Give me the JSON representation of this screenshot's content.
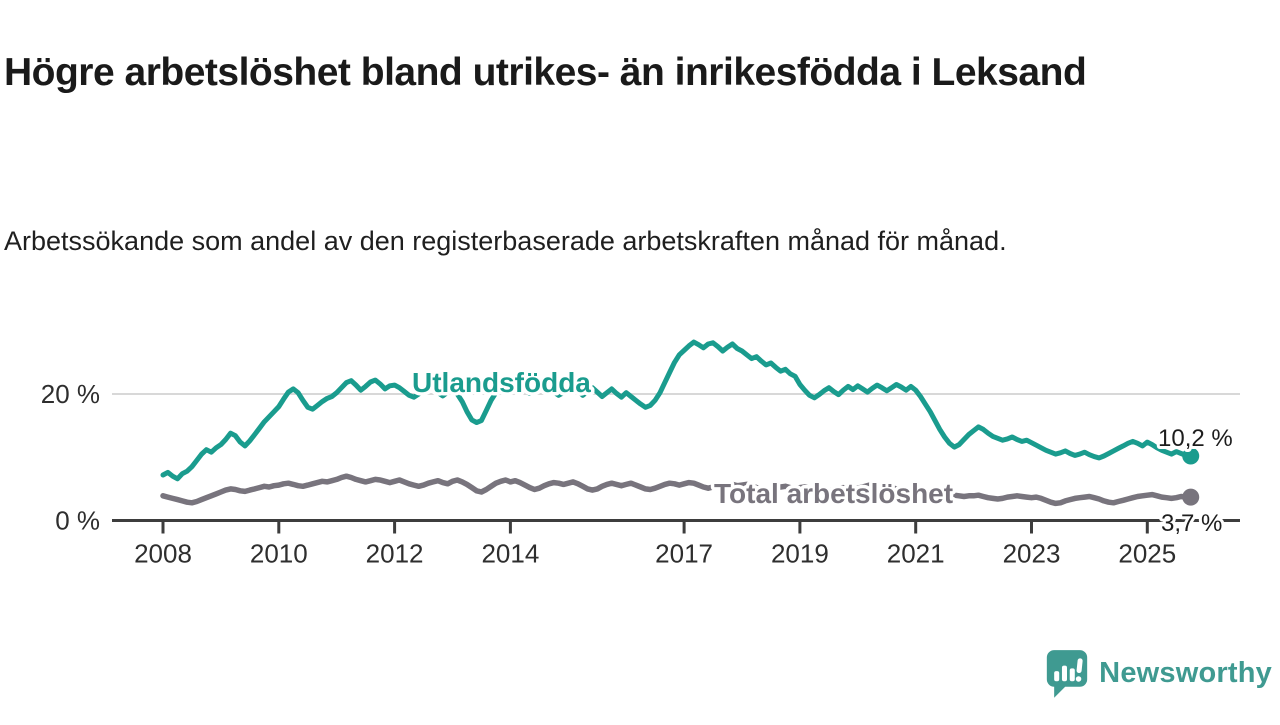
{
  "header": {
    "title": "Högre arbetslöshet bland utrikes- än inrikesfödda i Leksand",
    "subtitle": "Arbetssökande som andel av den registerbaserade arbetskraften månad för månad."
  },
  "branding": {
    "logo_text": "Newsworthy",
    "logo_color": "#3f9a91"
  },
  "chart_data": {
    "type": "line",
    "title": "",
    "xlabel": "",
    "ylabel": "",
    "x_start_year": 2008,
    "points_per_year": 12,
    "ylim": [
      0,
      30
    ],
    "grid": "y-only",
    "grid_color": "#d8d8d8",
    "axis_color": "#3d3d3d",
    "y_axis": {
      "ticks": [
        {
          "value": 0,
          "label": "0 %"
        },
        {
          "value": 20,
          "label": "20 %"
        }
      ]
    },
    "x_axis": {
      "ticks": [
        {
          "year": 2008,
          "label": "2008"
        },
        {
          "year": 2010,
          "label": "2010"
        },
        {
          "year": 2012,
          "label": "2012"
        },
        {
          "year": 2014,
          "label": "2014"
        },
        {
          "year": 2017,
          "label": "2017"
        },
        {
          "year": 2019,
          "label": "2019"
        },
        {
          "year": 2021,
          "label": "2021"
        },
        {
          "year": 2023,
          "label": "2023"
        },
        {
          "year": 2025,
          "label": "2025"
        }
      ]
    },
    "series": [
      {
        "name": "Utlandsfödda",
        "color": "#1a9c8e",
        "end_label": "10,2 %",
        "end_value": 10.2,
        "values": [
          7.2,
          7.6,
          7.0,
          6.6,
          7.4,
          7.8,
          8.5,
          9.5,
          10.5,
          11.2,
          10.8,
          11.5,
          12.0,
          12.8,
          13.8,
          13.4,
          12.4,
          11.8,
          12.6,
          13.6,
          14.6,
          15.6,
          16.4,
          17.2,
          18.0,
          19.2,
          20.3,
          20.8,
          20.2,
          19.0,
          17.9,
          17.6,
          18.2,
          18.8,
          19.3,
          19.6,
          20.2,
          21.0,
          21.8,
          22.1,
          21.4,
          20.6,
          21.2,
          21.9,
          22.2,
          21.6,
          20.8,
          21.3,
          21.4,
          21.0,
          20.4,
          19.8,
          19.5,
          20.0,
          20.6,
          21.2,
          20.8,
          20.2,
          19.7,
          20.3,
          20.6,
          20.0,
          18.8,
          17.2,
          15.9,
          15.5,
          15.8,
          17.4,
          19.0,
          20.2,
          20.8,
          20.4,
          20.4,
          20.9,
          21.3,
          20.7,
          20.1,
          20.5,
          21.0,
          21.4,
          20.9,
          20.3,
          19.8,
          20.2,
          20.6,
          21.2,
          20.5,
          19.8,
          20.4,
          21.0,
          20.3,
          19.6,
          20.2,
          20.8,
          20.1,
          19.5,
          20.2,
          19.6,
          19.0,
          18.4,
          17.9,
          18.2,
          19.0,
          20.2,
          21.8,
          23.4,
          25.0,
          26.2,
          26.9,
          27.6,
          28.2,
          27.8,
          27.3,
          27.9,
          28.1,
          27.5,
          26.8,
          27.4,
          27.9,
          27.2,
          26.8,
          26.2,
          25.6,
          25.9,
          25.2,
          24.6,
          24.9,
          24.2,
          23.6,
          23.9,
          23.2,
          22.8,
          21.5,
          20.6,
          19.8,
          19.4,
          19.9,
          20.5,
          21.0,
          20.4,
          19.9,
          20.6,
          21.2,
          20.7,
          21.3,
          20.8,
          20.3,
          20.9,
          21.4,
          21.0,
          20.5,
          21.0,
          21.5,
          21.1,
          20.6,
          21.2,
          20.6,
          19.6,
          18.4,
          17.2,
          15.8,
          14.4,
          13.2,
          12.2,
          11.6,
          12.0,
          12.8,
          13.6,
          14.2,
          14.8,
          14.4,
          13.8,
          13.3,
          13.0,
          12.7,
          12.9,
          13.2,
          12.8,
          12.5,
          12.7,
          12.3,
          11.9,
          11.5,
          11.1,
          10.8,
          10.5,
          10.7,
          11.0,
          10.6,
          10.3,
          10.5,
          10.8,
          10.4,
          10.1,
          9.9,
          10.2,
          10.6,
          11.0,
          11.4,
          11.8,
          12.2,
          12.5,
          12.2,
          11.8,
          12.4,
          12.0,
          11.5,
          11.1,
          10.8,
          10.5,
          10.9,
          10.6,
          10.3,
          10.2
        ]
      },
      {
        "name": "Total arbetslöshet",
        "color": "#78747d",
        "end_label": "3,7 %",
        "end_value": 3.7,
        "values": [
          3.9,
          3.7,
          3.5,
          3.3,
          3.1,
          2.9,
          2.8,
          3.0,
          3.3,
          3.6,
          3.9,
          4.2,
          4.5,
          4.8,
          5.0,
          4.9,
          4.7,
          4.6,
          4.8,
          5.0,
          5.2,
          5.4,
          5.3,
          5.5,
          5.6,
          5.8,
          5.9,
          5.7,
          5.5,
          5.4,
          5.6,
          5.8,
          6.0,
          6.2,
          6.1,
          6.3,
          6.5,
          6.8,
          7.0,
          6.8,
          6.5,
          6.3,
          6.1,
          6.3,
          6.5,
          6.4,
          6.2,
          6.0,
          6.2,
          6.4,
          6.1,
          5.8,
          5.6,
          5.4,
          5.6,
          5.9,
          6.1,
          6.3,
          6.0,
          5.8,
          6.2,
          6.4,
          6.1,
          5.7,
          5.2,
          4.7,
          4.5,
          4.9,
          5.4,
          5.9,
          6.2,
          6.4,
          6.1,
          6.3,
          6.0,
          5.6,
          5.2,
          4.9,
          5.1,
          5.5,
          5.8,
          6.0,
          5.9,
          5.7,
          5.9,
          6.1,
          5.8,
          5.4,
          5.0,
          4.8,
          5.0,
          5.4,
          5.7,
          5.9,
          5.7,
          5.5,
          5.7,
          5.9,
          5.6,
          5.3,
          5.0,
          4.9,
          5.1,
          5.4,
          5.7,
          5.9,
          5.8,
          5.6,
          5.8,
          6.0,
          5.9,
          5.6,
          5.3,
          5.1,
          5.3,
          5.6,
          5.8,
          5.9,
          5.7,
          5.5,
          5.6,
          5.7,
          5.5,
          5.2,
          4.9,
          4.7,
          4.8,
          5.1,
          5.3,
          5.4,
          5.2,
          5.0,
          5.2,
          5.3,
          5.1,
          4.8,
          4.6,
          4.4,
          4.6,
          4.9,
          5.1,
          5.2,
          5.0,
          4.9,
          5.1,
          5.3,
          5.5,
          5.7,
          5.5,
          5.3,
          5.1,
          5.2,
          5.0,
          4.8,
          4.6,
          4.7,
          4.9,
          5.0,
          4.8,
          4.6,
          4.4,
          4.2,
          4.1,
          4.2,
          4.0,
          3.9,
          3.8,
          3.9,
          3.9,
          4.0,
          3.8,
          3.6,
          3.5,
          3.4,
          3.5,
          3.7,
          3.8,
          3.9,
          3.8,
          3.7,
          3.6,
          3.7,
          3.5,
          3.2,
          2.9,
          2.7,
          2.8,
          3.1,
          3.3,
          3.5,
          3.6,
          3.7,
          3.8,
          3.6,
          3.4,
          3.1,
          2.9,
          2.8,
          3.0,
          3.2,
          3.4,
          3.6,
          3.8,
          3.9,
          4.0,
          4.1,
          3.9,
          3.7,
          3.6,
          3.5,
          3.6,
          3.8,
          3.7,
          3.7
        ]
      }
    ]
  }
}
